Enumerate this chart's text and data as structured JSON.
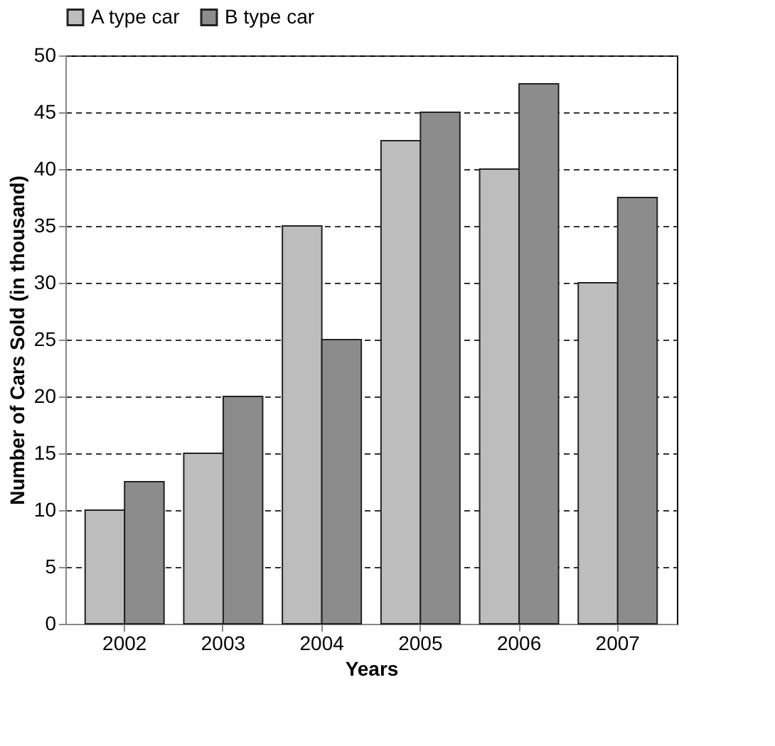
{
  "chart_data": {
    "type": "bar",
    "xlabel": "Years",
    "ylabel": "Number of Cars Sold (in thousand)",
    "categories": [
      "2002",
      "2003",
      "2004",
      "2005",
      "2006",
      "2007"
    ],
    "series": [
      {
        "name": "A type car",
        "color": "#bdbdbd",
        "values": [
          10,
          15,
          35,
          42.5,
          40,
          30
        ]
      },
      {
        "name": "B type car",
        "color": "#8c8c8c",
        "values": [
          12.5,
          20,
          25,
          45,
          47.5,
          37.5
        ]
      }
    ],
    "ylim": [
      0,
      50
    ],
    "yticks": [
      0,
      5,
      10,
      15,
      20,
      25,
      30,
      35,
      40,
      45,
      50
    ],
    "grid": "y",
    "legend": "top"
  }
}
